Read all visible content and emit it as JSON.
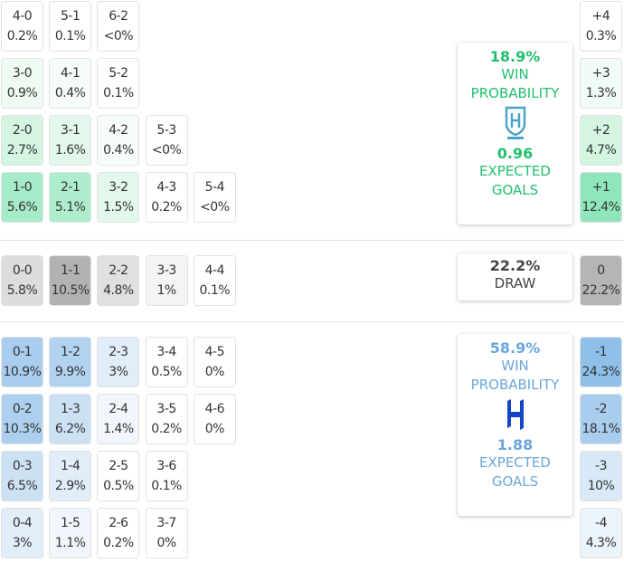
{
  "home": {
    "rows": [
      [
        {
          "score": "4-0",
          "pct": "0.2%",
          "color": "#ffffff"
        },
        {
          "score": "5-1",
          "pct": "0.1%",
          "color": "#ffffff"
        },
        {
          "score": "6-2",
          "pct": "<0%",
          "color": "#ffffff"
        }
      ],
      [
        {
          "score": "3-0",
          "pct": "0.9%",
          "color": "#eefbf3"
        },
        {
          "score": "4-1",
          "pct": "0.4%",
          "color": "#f6fdf9"
        },
        {
          "score": "5-2",
          "pct": "0.1%",
          "color": "#ffffff"
        }
      ],
      [
        {
          "score": "2-0",
          "pct": "2.7%",
          "color": "#d3f5e2"
        },
        {
          "score": "3-1",
          "pct": "1.6%",
          "color": "#e3f8ec"
        },
        {
          "score": "4-2",
          "pct": "0.4%",
          "color": "#f6fdf9"
        },
        {
          "score": "5-3",
          "pct": "<0%",
          "color": "#ffffff"
        }
      ],
      [
        {
          "score": "1-0",
          "pct": "5.6%",
          "color": "#a6ebc9"
        },
        {
          "score": "2-1",
          "pct": "5.1%",
          "color": "#adedcd"
        },
        {
          "score": "3-2",
          "pct": "1.5%",
          "color": "#e3f8ec"
        },
        {
          "score": "4-3",
          "pct": "0.2%",
          "color": "#ffffff"
        },
        {
          "score": "5-4",
          "pct": "<0%",
          "color": "#ffffff"
        }
      ]
    ],
    "diff": [
      {
        "score": "+4",
        "pct": "0.3%",
        "color": "#ffffff"
      },
      {
        "score": "+3",
        "pct": "1.3%",
        "color": "#f2fcf6"
      },
      {
        "score": "+2",
        "pct": "4.7%",
        "color": "#d3f5e2"
      },
      {
        "score": "+1",
        "pct": "12.4%",
        "color": "#8fe6bb"
      }
    ],
    "card": {
      "probability": "18.9%",
      "probability_label": "WIN PROBABILITY",
      "xg": "0.96",
      "xg_label": "EXPECTED GOALS"
    }
  },
  "draw": {
    "row": [
      {
        "score": "0-0",
        "pct": "5.8%",
        "color": "#dddddd"
      },
      {
        "score": "1-1",
        "pct": "10.5%",
        "color": "#b2b2b2"
      },
      {
        "score": "2-2",
        "pct": "4.8%",
        "color": "#e0e0e0"
      },
      {
        "score": "3-3",
        "pct": "1%",
        "color": "#f4f4f4"
      },
      {
        "score": "4-4",
        "pct": "0.1%",
        "color": "#ffffff"
      }
    ],
    "diff": {
      "score": "0",
      "pct": "22.2%",
      "color": "#b5b5b5"
    },
    "card": {
      "probability": "22.2%",
      "label": "DRAW"
    }
  },
  "away": {
    "rows": [
      [
        {
          "score": "0-1",
          "pct": "10.9%",
          "color": "#a9cdee"
        },
        {
          "score": "1-2",
          "pct": "9.9%",
          "color": "#b2d3f0"
        },
        {
          "score": "2-3",
          "pct": "3%",
          "color": "#e1edf9"
        },
        {
          "score": "3-4",
          "pct": "0.5%",
          "color": "#ffffff"
        },
        {
          "score": "4-5",
          "pct": "0%",
          "color": "#ffffff"
        }
      ],
      [
        {
          "score": "0-2",
          "pct": "10.3%",
          "color": "#aed0ef"
        },
        {
          "score": "1-3",
          "pct": "6.2%",
          "color": "#cde1f5"
        },
        {
          "score": "2-4",
          "pct": "1.4%",
          "color": "#f0f6fc"
        },
        {
          "score": "3-5",
          "pct": "0.2%",
          "color": "#ffffff"
        },
        {
          "score": "4-6",
          "pct": "0%",
          "color": "#ffffff"
        }
      ],
      [
        {
          "score": "0-3",
          "pct": "6.5%",
          "color": "#cde1f5"
        },
        {
          "score": "1-4",
          "pct": "2.9%",
          "color": "#e1edf9"
        },
        {
          "score": "2-5",
          "pct": "0.5%",
          "color": "#ffffff"
        },
        {
          "score": "3-6",
          "pct": "0.1%",
          "color": "#ffffff"
        }
      ],
      [
        {
          "score": "0-4",
          "pct": "3%",
          "color": "#e1edf9"
        },
        {
          "score": "1-5",
          "pct": "1.1%",
          "color": "#f0f6fc"
        },
        {
          "score": "2-6",
          "pct": "0.2%",
          "color": "#ffffff"
        },
        {
          "score": "3-7",
          "pct": "0%",
          "color": "#ffffff"
        }
      ]
    ],
    "diff": [
      {
        "score": "-1",
        "pct": "24.3%",
        "color": "#8ec0ea"
      },
      {
        "score": "-2",
        "pct": "18.1%",
        "color": "#a9cdee"
      },
      {
        "score": "-3",
        "pct": "10%",
        "color": "#d9e9f8"
      },
      {
        "score": "-4",
        "pct": "4.3%",
        "color": "#ecf4fb"
      }
    ],
    "card": {
      "probability": "58.9%",
      "probability_label": "WIN PROBABILITY",
      "xg": "1.88",
      "xg_label": "EXPECTED GOALS"
    }
  }
}
